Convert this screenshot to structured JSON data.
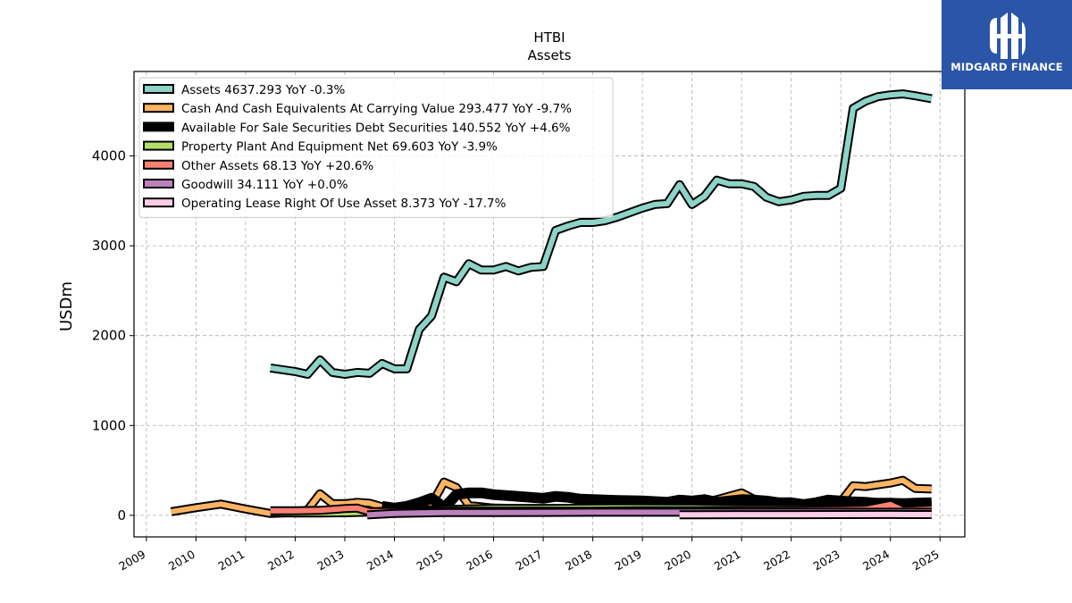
{
  "logo": {
    "text": "MIDGARD FINANCE"
  },
  "chart_data": {
    "type": "line",
    "title": "HTBI",
    "subtitle": "Assets",
    "ylabel": "USDm",
    "xlabel": "",
    "xlim": [
      2008.75,
      2025.5
    ],
    "ylim": [
      -240,
      4940
    ],
    "grid": true,
    "legend_position": "top-left",
    "x_ticks": [
      "2009",
      "2010",
      "2011",
      "2012",
      "2013",
      "2014",
      "2015",
      "2016",
      "2017",
      "2018",
      "2019",
      "2020",
      "2021",
      "2022",
      "2023",
      "2024",
      "2025"
    ],
    "y_ticks": [
      0,
      1000,
      2000,
      3000,
      4000
    ],
    "series": [
      {
        "name": "Assets",
        "legend": "Assets  4637.293 YoY -0.3%",
        "color": "#8dd3c7",
        "width": 7,
        "points": [
          [
            2011.5,
            1640
          ],
          [
            2011.75,
            1620
          ],
          [
            2012.0,
            1600
          ],
          [
            2012.25,
            1570
          ],
          [
            2012.5,
            1730
          ],
          [
            2012.75,
            1590
          ],
          [
            2013.0,
            1570
          ],
          [
            2013.25,
            1590
          ],
          [
            2013.5,
            1580
          ],
          [
            2013.75,
            1690
          ],
          [
            2014.0,
            1630
          ],
          [
            2014.25,
            1630
          ],
          [
            2014.5,
            2070
          ],
          [
            2014.75,
            2220
          ],
          [
            2015.0,
            2650
          ],
          [
            2015.25,
            2600
          ],
          [
            2015.5,
            2800
          ],
          [
            2015.75,
            2730
          ],
          [
            2016.0,
            2730
          ],
          [
            2016.25,
            2770
          ],
          [
            2016.5,
            2720
          ],
          [
            2016.75,
            2760
          ],
          [
            2017.0,
            2770
          ],
          [
            2017.25,
            3170
          ],
          [
            2017.5,
            3220
          ],
          [
            2017.75,
            3260
          ],
          [
            2018.0,
            3260
          ],
          [
            2018.25,
            3280
          ],
          [
            2018.5,
            3320
          ],
          [
            2018.75,
            3370
          ],
          [
            2019.0,
            3420
          ],
          [
            2019.25,
            3460
          ],
          [
            2019.5,
            3470
          ],
          [
            2019.75,
            3680
          ],
          [
            2020.0,
            3460
          ],
          [
            2020.25,
            3550
          ],
          [
            2020.5,
            3730
          ],
          [
            2020.75,
            3690
          ],
          [
            2021.0,
            3690
          ],
          [
            2021.25,
            3660
          ],
          [
            2021.5,
            3540
          ],
          [
            2021.75,
            3490
          ],
          [
            2022.0,
            3510
          ],
          [
            2022.25,
            3550
          ],
          [
            2022.5,
            3560
          ],
          [
            2022.75,
            3560
          ],
          [
            2023.0,
            3640
          ],
          [
            2023.25,
            4530
          ],
          [
            2023.5,
            4610
          ],
          [
            2023.75,
            4660
          ],
          [
            2024.0,
            4680
          ],
          [
            2024.25,
            4690
          ],
          [
            2024.5,
            4670
          ],
          [
            2024.83,
            4637
          ]
        ]
      },
      {
        "name": "Cash And Cash Equivalents At Carrying Value",
        "legend": "Cash And Cash Equivalents At Carrying Value  293.477 YoY -9.7%",
        "color": "#fdb462",
        "width": 7,
        "points": [
          [
            2009.5,
            40
          ],
          [
            2010.0,
            85
          ],
          [
            2010.5,
            125
          ],
          [
            2011.0,
            70
          ],
          [
            2011.5,
            20
          ],
          [
            2012.0,
            30
          ],
          [
            2012.25,
            60
          ],
          [
            2012.5,
            240
          ],
          [
            2012.75,
            130
          ],
          [
            2013.0,
            130
          ],
          [
            2013.25,
            145
          ],
          [
            2013.5,
            135
          ],
          [
            2013.75,
            95
          ],
          [
            2014.0,
            80
          ],
          [
            2014.25,
            90
          ],
          [
            2014.5,
            100
          ],
          [
            2014.75,
            120
          ],
          [
            2015.0,
            370
          ],
          [
            2015.25,
            310
          ],
          [
            2015.5,
            110
          ],
          [
            2015.75,
            95
          ],
          [
            2016.0,
            80
          ],
          [
            2016.5,
            75
          ],
          [
            2017.0,
            75
          ],
          [
            2017.5,
            70
          ],
          [
            2018.0,
            80
          ],
          [
            2018.5,
            85
          ],
          [
            2019.0,
            90
          ],
          [
            2019.5,
            95
          ],
          [
            2020.0,
            110
          ],
          [
            2020.5,
            175
          ],
          [
            2021.0,
            250
          ],
          [
            2021.25,
            180
          ],
          [
            2021.5,
            140
          ],
          [
            2022.0,
            110
          ],
          [
            2022.5,
            115
          ],
          [
            2023.0,
            150
          ],
          [
            2023.25,
            330
          ],
          [
            2023.5,
            320
          ],
          [
            2024.0,
            360
          ],
          [
            2024.25,
            390
          ],
          [
            2024.5,
            300
          ],
          [
            2024.83,
            293
          ]
        ]
      },
      {
        "name": "Available For Sale Securities Debt Securities",
        "legend": "Available For Sale Securities Debt Securities  140.552 YoY +4.6%",
        "color": "#000000",
        "width": 9,
        "points": [
          [
            2013.75,
            100
          ],
          [
            2014.0,
            80
          ],
          [
            2014.25,
            100
          ],
          [
            2014.5,
            140
          ],
          [
            2014.75,
            190
          ],
          [
            2014.9,
            130
          ],
          [
            2015.0,
            80
          ],
          [
            2015.25,
            230
          ],
          [
            2015.5,
            250
          ],
          [
            2015.75,
            250
          ],
          [
            2016.0,
            230
          ],
          [
            2016.5,
            210
          ],
          [
            2017.0,
            190
          ],
          [
            2017.25,
            210
          ],
          [
            2017.5,
            200
          ],
          [
            2017.75,
            180
          ],
          [
            2018.0,
            175
          ],
          [
            2018.5,
            165
          ],
          [
            2019.0,
            160
          ],
          [
            2019.5,
            145
          ],
          [
            2019.75,
            170
          ],
          [
            2020.0,
            160
          ],
          [
            2020.25,
            175
          ],
          [
            2020.5,
            145
          ],
          [
            2020.75,
            160
          ],
          [
            2021.0,
            175
          ],
          [
            2021.25,
            170
          ],
          [
            2021.5,
            160
          ],
          [
            2021.75,
            140
          ],
          [
            2022.0,
            140
          ],
          [
            2022.25,
            120
          ],
          [
            2022.5,
            140
          ],
          [
            2022.75,
            170
          ],
          [
            2023.0,
            160
          ],
          [
            2023.25,
            150
          ],
          [
            2023.5,
            145
          ],
          [
            2023.75,
            135
          ],
          [
            2024.0,
            135
          ],
          [
            2024.25,
            130
          ],
          [
            2024.5,
            135
          ],
          [
            2024.83,
            141
          ]
        ]
      },
      {
        "name": "Property Plant And Equipment Net",
        "legend": "Property Plant And Equipment Net  69.603 YoY -3.9%",
        "color": "#b3de69",
        "width": 7,
        "points": [
          [
            2011.5,
            30
          ],
          [
            2012.0,
            25
          ],
          [
            2012.5,
            25
          ],
          [
            2013.0,
            28
          ],
          [
            2013.5,
            35
          ],
          [
            2014.0,
            50
          ],
          [
            2014.5,
            55
          ],
          [
            2015.0,
            65
          ],
          [
            2015.5,
            70
          ],
          [
            2016.0,
            75
          ],
          [
            2016.5,
            75
          ],
          [
            2017.0,
            75
          ],
          [
            2017.5,
            78
          ],
          [
            2018.0,
            80
          ],
          [
            2018.5,
            82
          ],
          [
            2019.0,
            82
          ],
          [
            2019.5,
            80
          ],
          [
            2020.0,
            80
          ],
          [
            2020.5,
            78
          ],
          [
            2021.0,
            78
          ],
          [
            2021.5,
            78
          ],
          [
            2022.0,
            76
          ],
          [
            2022.5,
            75
          ],
          [
            2023.0,
            74
          ],
          [
            2023.5,
            73
          ],
          [
            2024.0,
            72
          ],
          [
            2024.5,
            71
          ],
          [
            2024.83,
            70
          ]
        ]
      },
      {
        "name": "Other Assets",
        "legend": "Other Assets  68.13 YoY +20.6%",
        "color": "#fb8072",
        "width": 7,
        "points": [
          [
            2011.5,
            50
          ],
          [
            2012.0,
            50
          ],
          [
            2012.5,
            55
          ],
          [
            2013.0,
            75
          ],
          [
            2013.25,
            80
          ],
          [
            2013.5,
            40
          ],
          [
            2014.0,
            40
          ],
          [
            2014.5,
            40
          ],
          [
            2015.0,
            45
          ],
          [
            2016.0,
            45
          ],
          [
            2017.0,
            45
          ],
          [
            2018.0,
            45
          ],
          [
            2019.0,
            50
          ],
          [
            2020.0,
            50
          ],
          [
            2021.0,
            55
          ],
          [
            2022.0,
            55
          ],
          [
            2023.0,
            60
          ],
          [
            2023.5,
            65
          ],
          [
            2024.0,
            120
          ],
          [
            2024.25,
            55
          ],
          [
            2024.83,
            68
          ]
        ]
      },
      {
        "name": "Goodwill",
        "legend": "Goodwill  34.111 YoY +0.0%",
        "color": "#bc80bd",
        "width": 7,
        "points": [
          [
            2013.45,
            5
          ],
          [
            2014.0,
            20
          ],
          [
            2015.0,
            30
          ],
          [
            2016.0,
            30
          ],
          [
            2017.0,
            32
          ],
          [
            2018.0,
            34
          ],
          [
            2019.0,
            34
          ],
          [
            2020.0,
            34
          ],
          [
            2021.0,
            34
          ],
          [
            2022.0,
            34
          ],
          [
            2023.0,
            34
          ],
          [
            2024.0,
            34
          ],
          [
            2024.83,
            34
          ]
        ]
      },
      {
        "name": "Operating Lease Right Of Use Asset",
        "legend": "Operating Lease Right Of Use Asset  8.373 YoY -17.7%",
        "color": "#fccde5",
        "width": 7,
        "points": [
          [
            2019.75,
            7
          ],
          [
            2020.0,
            7
          ],
          [
            2021.0,
            8
          ],
          [
            2022.0,
            8
          ],
          [
            2023.0,
            9
          ],
          [
            2024.0,
            10
          ],
          [
            2024.83,
            8.4
          ]
        ]
      }
    ]
  }
}
